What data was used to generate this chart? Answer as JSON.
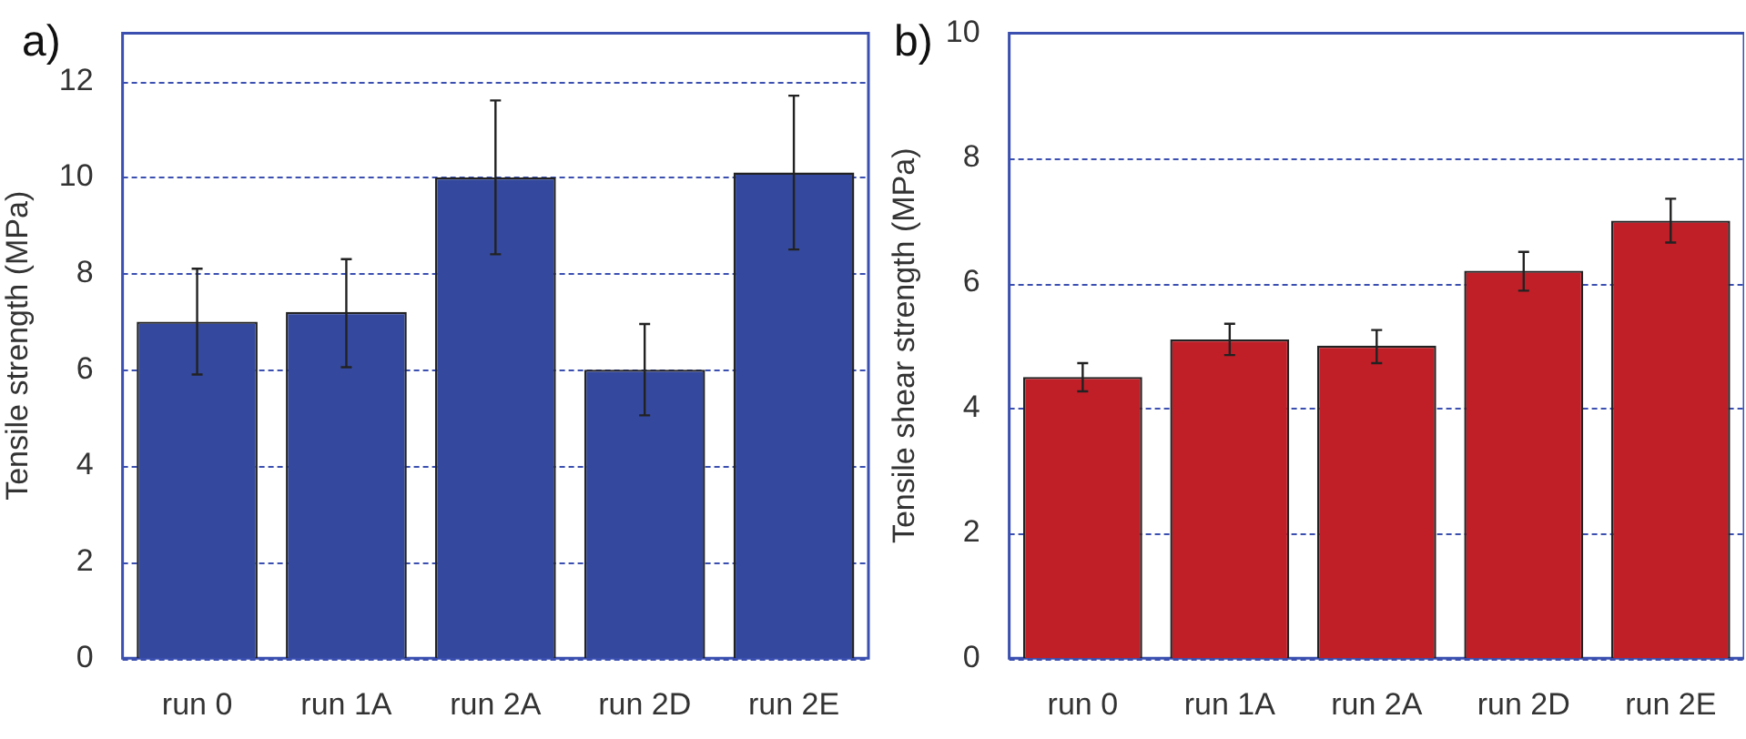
{
  "chart_data": [
    {
      "type": "bar",
      "title": "a)",
      "ylabel": "Tensile strength (MPa)",
      "categories": [
        "run 0",
        "run 1A",
        "run 2A",
        "run 2D",
        "run 2E"
      ],
      "values": [
        7.0,
        7.2,
        10.0,
        6.0,
        10.1
      ],
      "color": "#34499e",
      "errors": [
        [
          5.9,
          8.1
        ],
        [
          6.05,
          8.3
        ],
        [
          8.4,
          11.6
        ],
        [
          5.05,
          6.95
        ],
        [
          8.5,
          11.7
        ]
      ],
      "ylim": [
        0,
        13
      ],
      "yticks": [
        0,
        2,
        4,
        6,
        8,
        10,
        12
      ],
      "grid": true
    },
    {
      "type": "bar",
      "title": "b)",
      "ylabel": "Tensile shear strength (MPa)",
      "categories": [
        "run 0",
        "run 1A",
        "run 2A",
        "run 2D",
        "run 2E"
      ],
      "values": [
        4.5,
        5.1,
        5.0,
        6.2,
        7.0
      ],
      "color": "#c01f28",
      "errors": [
        [
          4.27,
          4.72
        ],
        [
          4.85,
          5.35
        ],
        [
          4.72,
          5.25
        ],
        [
          5.88,
          6.5
        ],
        [
          6.65,
          7.35
        ]
      ],
      "ylim": [
        0,
        10
      ],
      "yticks": [
        0,
        2,
        4,
        6,
        8,
        10
      ],
      "grid": true
    }
  ]
}
